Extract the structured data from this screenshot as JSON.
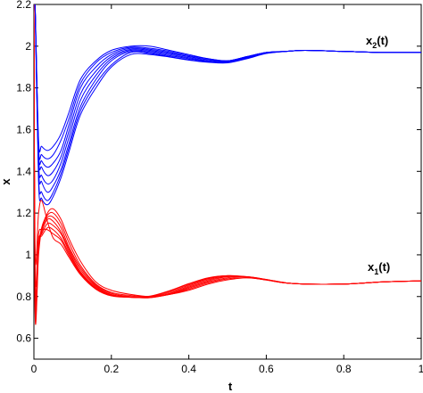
{
  "chart_data": {
    "type": "line",
    "xlabel": "t",
    "ylabel": "x",
    "xlim": [
      0,
      1
    ],
    "ylim": [
      0.5,
      2.2
    ],
    "x_ticks": [
      0,
      0.2,
      0.4,
      0.6,
      0.8,
      1
    ],
    "x_tick_labels": [
      "0",
      "0.2",
      "0.4",
      "0.6",
      "0.8",
      "1"
    ],
    "y_ticks": [
      0.6,
      0.8,
      1.0,
      1.2,
      1.4,
      1.6,
      1.8,
      2.0,
      2.2
    ],
    "y_tick_labels": [
      "0.6",
      "0.8",
      "1",
      "1.2",
      "1.4",
      "1.6",
      "1.8",
      "2",
      "2.2"
    ],
    "grid": false,
    "series": [
      {
        "name": "x2(t)",
        "label_main": "x",
        "label_sub": "2",
        "label_tail": "(t)",
        "color": "#0000ff",
        "x": [
          0.003,
          0.012,
          0.02,
          0.035,
          0.05,
          0.07,
          0.09,
          0.12,
          0.16,
          0.2,
          0.25,
          0.3,
          0.35,
          0.4,
          0.45,
          0.5,
          0.55,
          0.6,
          0.65,
          0.7,
          0.8,
          0.9,
          1.0
        ],
        "trajectories": [
          [
            2.2,
            1.55,
            1.52,
            1.5,
            1.52,
            1.58,
            1.68,
            1.84,
            1.93,
            1.98,
            2.0,
            2.0,
            1.98,
            1.96,
            1.94,
            1.93,
            1.95,
            1.97,
            1.975,
            1.98,
            1.975,
            1.97,
            1.97
          ],
          [
            2.2,
            1.52,
            1.48,
            1.46,
            1.48,
            1.55,
            1.65,
            1.82,
            1.92,
            1.97,
            1.995,
            1.99,
            1.975,
            1.955,
            1.94,
            1.93,
            1.95,
            1.97,
            1.975,
            1.98,
            1.975,
            1.97,
            1.97
          ],
          [
            2.2,
            1.5,
            1.45,
            1.42,
            1.44,
            1.5,
            1.62,
            1.8,
            1.9,
            1.96,
            1.99,
            1.985,
            1.97,
            1.95,
            1.935,
            1.93,
            1.95,
            1.97,
            1.975,
            1.98,
            1.975,
            1.97,
            1.97
          ],
          [
            2.2,
            1.48,
            1.42,
            1.38,
            1.4,
            1.47,
            1.59,
            1.77,
            1.88,
            1.95,
            1.985,
            1.98,
            1.965,
            1.95,
            1.935,
            1.928,
            1.948,
            1.97,
            1.975,
            1.98,
            1.975,
            1.97,
            1.97
          ],
          [
            2.2,
            1.45,
            1.38,
            1.34,
            1.36,
            1.44,
            1.56,
            1.74,
            1.86,
            1.94,
            1.98,
            1.975,
            1.96,
            1.945,
            1.93,
            1.925,
            1.945,
            1.968,
            1.975,
            1.98,
            1.975,
            1.97,
            1.97
          ],
          [
            2.2,
            1.42,
            1.35,
            1.3,
            1.33,
            1.41,
            1.53,
            1.71,
            1.84,
            1.93,
            1.975,
            1.97,
            1.955,
            1.94,
            1.928,
            1.925,
            1.945,
            1.968,
            1.975,
            1.98,
            1.975,
            1.97,
            1.97
          ],
          [
            2.2,
            1.38,
            1.3,
            1.26,
            1.3,
            1.39,
            1.51,
            1.69,
            1.82,
            1.91,
            1.97,
            1.965,
            1.95,
            1.935,
            1.925,
            1.923,
            1.943,
            1.966,
            1.975,
            1.98,
            1.975,
            1.97,
            1.97
          ],
          [
            2.2,
            1.35,
            1.27,
            1.24,
            1.28,
            1.37,
            1.49,
            1.67,
            1.8,
            1.9,
            1.96,
            1.96,
            1.948,
            1.933,
            1.923,
            1.92,
            1.94,
            1.965,
            1.975,
            1.98,
            1.975,
            1.97,
            1.97
          ]
        ]
      },
      {
        "name": "x1(t)",
        "label_main": "x",
        "label_sub": "1",
        "label_tail": "(t)",
        "color": "#ff0000",
        "x": [
          0.003,
          0.012,
          0.02,
          0.035,
          0.05,
          0.07,
          0.09,
          0.12,
          0.16,
          0.2,
          0.25,
          0.3,
          0.35,
          0.4,
          0.45,
          0.5,
          0.55,
          0.6,
          0.65,
          0.7,
          0.8,
          0.9,
          1.0
        ],
        "trajectories": [
          [
            0.72,
            1.0,
            1.12,
            1.2,
            1.22,
            1.17,
            1.08,
            0.97,
            0.87,
            0.83,
            0.81,
            0.8,
            0.81,
            0.83,
            0.86,
            0.88,
            0.89,
            0.88,
            0.865,
            0.86,
            0.86,
            0.87,
            0.875
          ],
          [
            0.75,
            1.02,
            1.13,
            1.19,
            1.2,
            1.15,
            1.06,
            0.95,
            0.86,
            0.82,
            0.805,
            0.8,
            0.81,
            0.835,
            0.865,
            0.885,
            0.89,
            0.88,
            0.865,
            0.86,
            0.86,
            0.87,
            0.875
          ],
          [
            0.78,
            1.04,
            1.12,
            1.18,
            1.18,
            1.13,
            1.04,
            0.94,
            0.855,
            0.815,
            0.8,
            0.797,
            0.81,
            0.84,
            0.87,
            0.89,
            0.895,
            0.882,
            0.866,
            0.86,
            0.86,
            0.87,
            0.875
          ],
          [
            0.8,
            1.05,
            1.11,
            1.17,
            1.16,
            1.11,
            1.03,
            0.93,
            0.85,
            0.81,
            0.798,
            0.795,
            0.812,
            0.845,
            0.875,
            0.895,
            0.895,
            0.882,
            0.866,
            0.86,
            0.86,
            0.87,
            0.875
          ],
          [
            0.82,
            1.06,
            1.1,
            1.15,
            1.14,
            1.1,
            1.02,
            0.92,
            0.845,
            0.808,
            0.797,
            0.795,
            0.815,
            0.85,
            0.88,
            0.897,
            0.894,
            0.88,
            0.865,
            0.86,
            0.86,
            0.87,
            0.875
          ],
          [
            0.85,
            1.07,
            1.09,
            1.13,
            1.12,
            1.08,
            1.01,
            0.915,
            0.84,
            0.806,
            0.796,
            0.797,
            0.82,
            0.855,
            0.885,
            0.9,
            0.895,
            0.88,
            0.865,
            0.86,
            0.86,
            0.87,
            0.875
          ],
          [
            0.9,
            1.1,
            1.12,
            1.12,
            1.1,
            1.07,
            1.0,
            0.91,
            0.838,
            0.805,
            0.797,
            0.8,
            0.825,
            0.86,
            0.888,
            0.9,
            0.894,
            0.88,
            0.865,
            0.86,
            0.86,
            0.87,
            0.875
          ],
          [
            1.0,
            1.2,
            1.26,
            1.16,
            1.08,
            1.05,
            0.99,
            0.905,
            0.835,
            0.803,
            0.797,
            0.802,
            0.828,
            0.862,
            0.89,
            0.9,
            0.893,
            0.879,
            0.865,
            0.86,
            0.86,
            0.87,
            0.875
          ]
        ]
      }
    ]
  }
}
